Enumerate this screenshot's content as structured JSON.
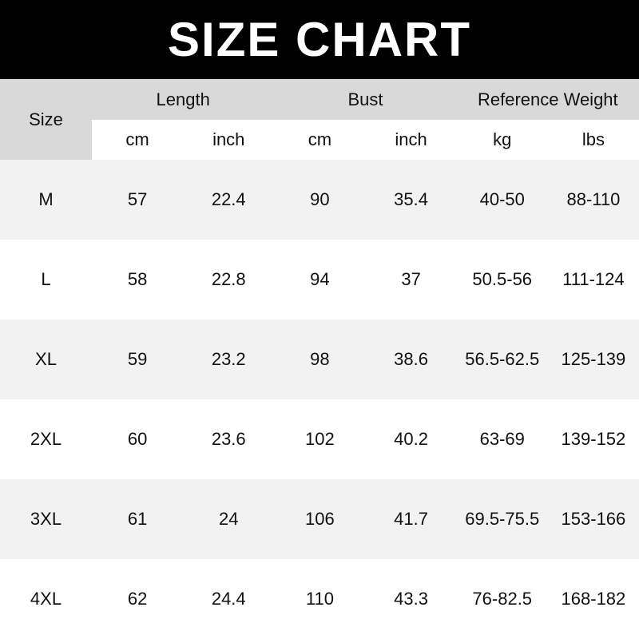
{
  "title": "SIZE CHART",
  "header": {
    "size": "Size",
    "groups": [
      "Length",
      "Bust",
      "Reference Weight"
    ],
    "units": [
      "cm",
      "inch",
      "cm",
      "inch",
      "kg",
      "lbs"
    ]
  },
  "rows": [
    [
      "M",
      "57",
      "22.4",
      "90",
      "35.4",
      "40-50",
      "88-110"
    ],
    [
      "L",
      "58",
      "22.8",
      "94",
      "37",
      "50.5-56",
      "111-124"
    ],
    [
      "XL",
      "59",
      "23.2",
      "98",
      "38.6",
      "56.5-62.5",
      "125-139"
    ],
    [
      "2XL",
      "60",
      "23.6",
      "102",
      "40.2",
      "63-69",
      "139-152"
    ],
    [
      "3XL",
      "61",
      "24",
      "106",
      "41.7",
      "69.5-75.5",
      "153-166"
    ],
    [
      "4XL",
      "62",
      "24.4",
      "110",
      "43.3",
      "76-82.5",
      "168-182"
    ]
  ],
  "colors": {
    "title_bg": "#000000",
    "header_bg": "#d9d9d9",
    "alt_row_bg": "#f2f2f2"
  }
}
